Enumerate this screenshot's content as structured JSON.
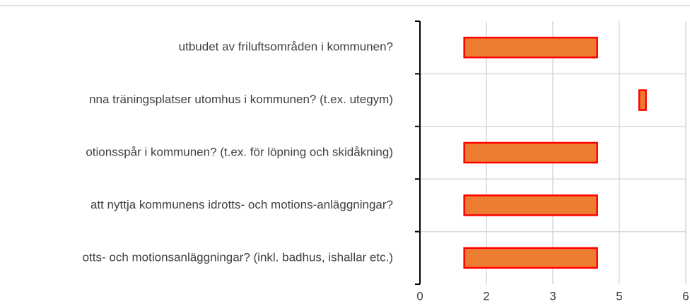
{
  "chart_data": {
    "type": "range-bar",
    "categories": [
      "utbudet av friluftsområden i kommunen?",
      "nna träningsplatser utomhus i kommunen? (t.ex. utegym)",
      "otionsspår  i kommunen? (t.ex. för löpning och skidåkning)",
      "att nyttja kommunens idrotts- och motions-anläggningar?",
      "otts- och motionsanläggningar? (inkl. badhus, ishallar etc.)"
    ],
    "starts": [
      1,
      4.95,
      1,
      1,
      1
    ],
    "ends": [
      4,
      5.1,
      4,
      4,
      4
    ],
    "color": "#ED7D31",
    "edge_color": "#FF0000",
    "xlim": [
      0,
      6
    ],
    "xticks": [
      0,
      {
        "value": 1.5,
        "label": "2"
      },
      3,
      {
        "value": 4.5,
        "label": "5"
      },
      6
    ],
    "grid": true
  }
}
